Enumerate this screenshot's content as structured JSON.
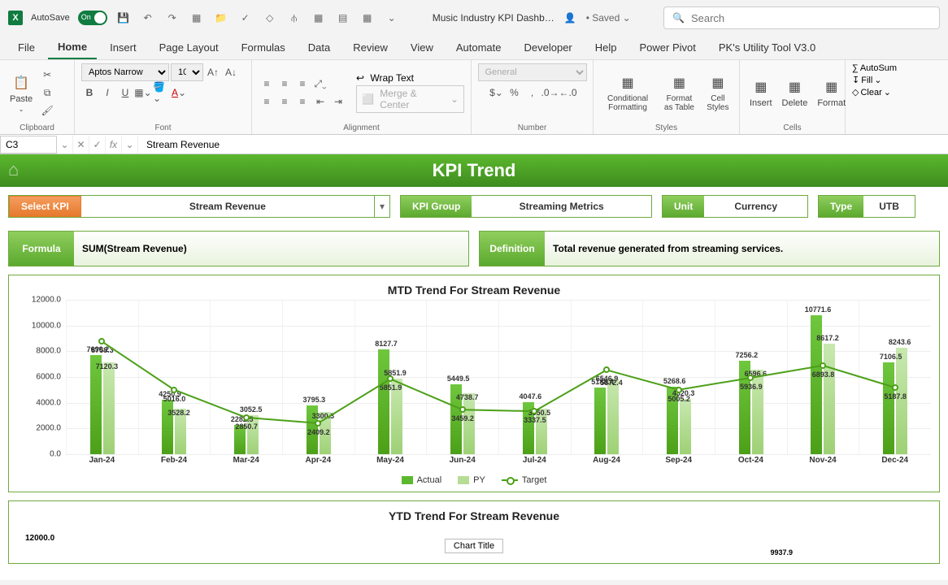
{
  "titlebar": {
    "autosave_label": "AutoSave",
    "autosave_state": "On",
    "doc_name": "Music Industry KPI Dashb…",
    "saved": "• Saved ⌄",
    "search_placeholder": "Search"
  },
  "ribbon_tabs": [
    "File",
    "Home",
    "Insert",
    "Page Layout",
    "Formulas",
    "Data",
    "Review",
    "View",
    "Automate",
    "Developer",
    "Help",
    "Power Pivot",
    "PK's Utility Tool V3.0"
  ],
  "active_tab": "Home",
  "ribbon": {
    "paste": "Paste",
    "clipboard": "Clipboard",
    "font_name": "Aptos Narrow",
    "font_size": "10",
    "font": "Font",
    "alignment": "Alignment",
    "wrap_text": "Wrap Text",
    "merge_center": "Merge & Center",
    "number_format": "General",
    "number": "Number",
    "cond_fmt": "Conditional Formatting",
    "fmt_table": "Format as Table",
    "cell_styles": "Cell Styles",
    "styles": "Styles",
    "insert": "Insert",
    "delete": "Delete",
    "format": "Format",
    "cells": "Cells",
    "autosum": "AutoSum",
    "fill": "Fill",
    "clear": "Clear"
  },
  "formula_bar": {
    "cell": "C3",
    "value": "Stream Revenue"
  },
  "dashboard": {
    "header": "KPI Trend",
    "select_kpi_lbl": "Select KPI",
    "select_kpi_val": "Stream Revenue",
    "kpi_group_lbl": "KPI Group",
    "kpi_group_val": "Streaming Metrics",
    "unit_lbl": "Unit",
    "unit_val": "Currency",
    "type_lbl": "Type",
    "type_val": "UTB",
    "formula_lbl": "Formula",
    "formula_val": "SUM(Stream Revenue)",
    "definition_lbl": "Definition",
    "definition_val": "Total revenue generated from streaming services."
  },
  "chart1": {
    "title": "MTD Trend For Stream Revenue",
    "type": "bar-line-combo",
    "ylim": [
      0,
      12000
    ],
    "ytick_step": 2000,
    "y_format": ".1f",
    "categories": [
      "Jan-24",
      "Feb-24",
      "Mar-24",
      "Apr-24",
      "May-24",
      "Jun-24",
      "Jul-24",
      "Aug-24",
      "Sep-24",
      "Oct-24",
      "Nov-24",
      "Dec-24"
    ],
    "actual": [
      7690.2,
      4250.9,
      2282.5,
      3795.3,
      8127.7,
      5449.5,
      4047.6,
      5188.4,
      5268.6,
      7256.2,
      10771.6,
      7106.5
    ],
    "py": [
      7120.3,
      3528.2,
      3052.5,
      3300.3,
      5851.9,
      4738.7,
      3550.5,
      5872.4,
      4320.3,
      6596.6,
      8617.2,
      8243.6
    ],
    "target": [
      8758.3,
      5016.0,
      2850.7,
      2409.2,
      5851.9,
      3459.2,
      3337.5,
      6546.9,
      5005.2,
      5936.9,
      6893.8,
      5187.8
    ],
    "actual_label_extra": [
      "",
      "",
      "",
      "",
      "",
      "",
      "",
      "",
      "",
      "",
      "",
      ""
    ],
    "colors": {
      "actual_fill": "#5cb82e",
      "py_fill": "#b6dc96",
      "target_line": "#4ca018",
      "grid": "#eeeeee",
      "bg": "#ffffff"
    },
    "legend": {
      "actual": "Actual",
      "py": "PY",
      "target": "Target"
    }
  },
  "chart2": {
    "title": "YTD Trend For Stream Revenue",
    "chart_title_box": "Chart Title",
    "visible_label": "9937.9",
    "ylim": [
      0,
      12000
    ],
    "y_visible_tick": "12000.0"
  }
}
